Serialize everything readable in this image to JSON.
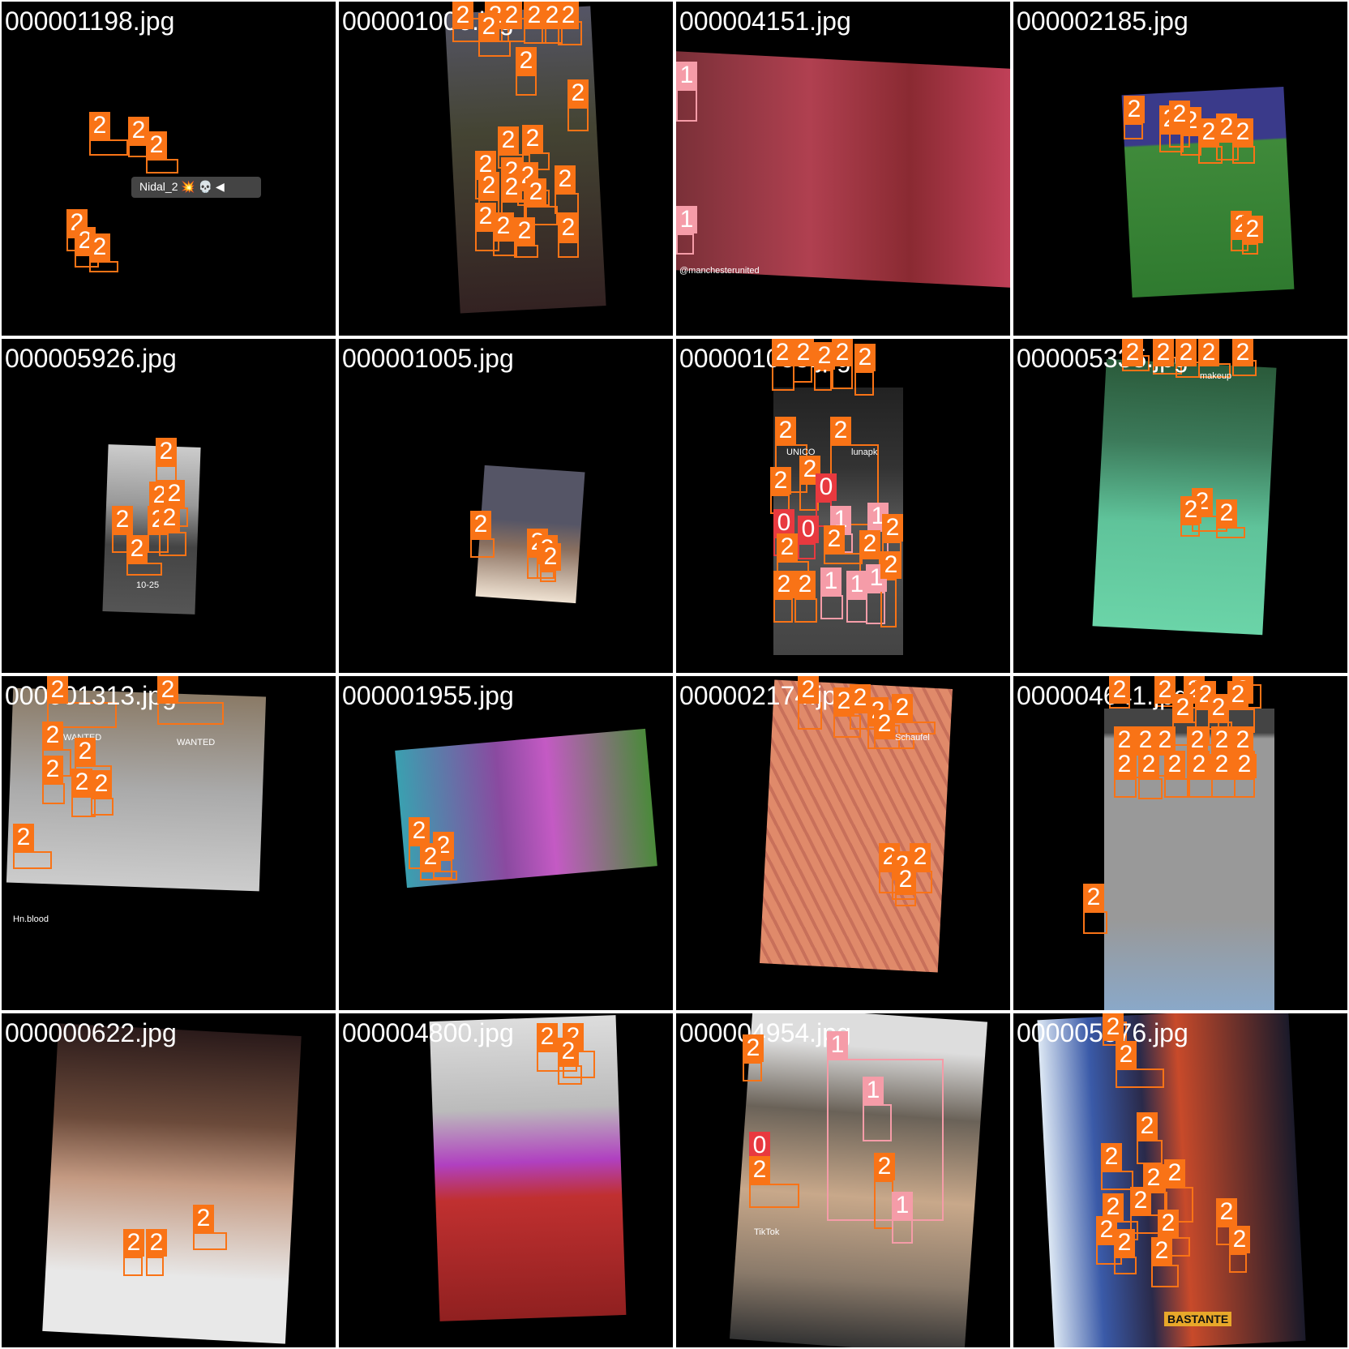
{
  "colors": {
    "class2": "#f97316",
    "class1": "#f59ca8",
    "class0": "#e8393f",
    "separator": "#ffffff",
    "cell_bg": "#000000"
  },
  "tiles": [
    {
      "filename": "000001198.jpg",
      "captions": [
        "Nidal_2 💥 💀 ◀"
      ],
      "labels": [
        "2",
        "2",
        "2",
        "2",
        "2",
        "2"
      ]
    },
    {
      "filename": "000001006.jpg",
      "captions": [],
      "labels": [
        "2",
        "2",
        "2",
        "2",
        "2",
        "2",
        "2",
        "2",
        "2",
        "2",
        "2",
        "2",
        "2",
        "2",
        "2",
        "2",
        "2",
        "2",
        "2",
        "2",
        "2",
        "2"
      ]
    },
    {
      "filename": "000004151.jpg",
      "captions": [
        "@manchesterunited"
      ],
      "labels": [
        "1",
        "1"
      ]
    },
    {
      "filename": "000002185.jpg",
      "captions": [],
      "labels": [
        "2",
        "2",
        "2",
        "2",
        "2",
        "2",
        "2",
        "2",
        "2"
      ]
    },
    {
      "filename": "000005926.jpg",
      "captions": [
        "10-25"
      ],
      "labels": [
        "2",
        "2",
        "2",
        "2",
        "2",
        "2",
        "2"
      ]
    },
    {
      "filename": "000001005.jpg",
      "captions": [],
      "labels": [
        "2",
        "2",
        "2",
        "2"
      ]
    },
    {
      "filename": "000001053.jpg",
      "captions": [
        "UNICO",
        "lunapk"
      ],
      "labels": [
        "2",
        "2",
        "2",
        "2",
        "2",
        "2",
        "2",
        "2",
        "2",
        "0",
        "0",
        "0",
        "1",
        "1",
        "2",
        "2",
        "2",
        "2",
        "1",
        "1",
        "1",
        "2",
        "2",
        "2"
      ]
    },
    {
      "filename": "000005335.jpg",
      "captions": [
        "makeup"
      ],
      "labels": [
        "2",
        "2",
        "2",
        "2",
        "2",
        "2",
        "2",
        "2"
      ]
    },
    {
      "filename": "000001313.jpg",
      "captions": [
        "WANTED",
        "WANTED",
        "Hn.blood"
      ],
      "labels": [
        "2",
        "2",
        "2",
        "2",
        "2",
        "2",
        "2",
        "2"
      ]
    },
    {
      "filename": "000001955.jpg",
      "captions": [],
      "labels": [
        "2",
        "2",
        "2"
      ]
    },
    {
      "filename": "000002174.jpg",
      "captions": [
        "Schaufel"
      ],
      "labels": [
        "2",
        "2",
        "2",
        "2",
        "2",
        "2",
        "2",
        "2",
        "2",
        "2"
      ]
    },
    {
      "filename": "000004641.jpg",
      "captions": [],
      "labels": [
        "2",
        "2",
        "2",
        "2",
        "2",
        "2",
        "2",
        "2",
        "2",
        "2",
        "2",
        "2",
        "2",
        "2",
        "2",
        "2",
        "2",
        "2",
        "2",
        "2",
        "2"
      ]
    },
    {
      "filename": "000000622.jpg",
      "captions": [],
      "labels": [
        "2",
        "2",
        "2"
      ]
    },
    {
      "filename": "000004800.jpg",
      "captions": [],
      "labels": [
        "2",
        "2",
        "2"
      ]
    },
    {
      "filename": "000004954.jpg",
      "captions": [
        "TikTok"
      ],
      "labels": [
        "1",
        "0",
        "2",
        "2",
        "1",
        "1",
        "2"
      ]
    },
    {
      "filename": "000005576.jpg",
      "captions": [
        "BASTANTE"
      ],
      "labels": [
        "2",
        "2",
        "2",
        "2",
        "2",
        "2",
        "2",
        "2",
        "2",
        "2",
        "2",
        "2",
        "2",
        "2"
      ]
    }
  ]
}
